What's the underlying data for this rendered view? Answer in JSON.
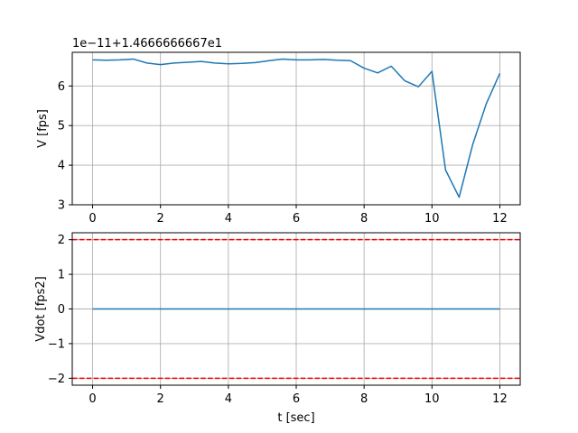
{
  "chart_data": [
    {
      "type": "line",
      "ylabel": "V [fps]",
      "xlabel": "",
      "offset_text": "1e−11+1.4666666667e1",
      "xlim": [
        -0.6,
        12.6
      ],
      "ylim": [
        3.0,
        6.85
      ],
      "xticks": [
        0,
        2,
        4,
        6,
        8,
        10,
        12
      ],
      "yticks": [
        3,
        4,
        5,
        6
      ],
      "grid": true,
      "series": [
        {
          "color": "#1f77b4",
          "x": [
            0,
            0.4,
            0.8,
            1.2,
            1.6,
            2.0,
            2.4,
            2.8,
            3.2,
            3.6,
            4.0,
            4.4,
            4.8,
            5.2,
            5.6,
            6.0,
            6.4,
            6.8,
            7.2,
            7.6,
            8.0,
            8.4,
            8.8,
            9.2,
            9.6,
            10.0,
            10.4,
            10.8,
            11.2,
            11.6,
            12.0
          ],
          "y": [
            6.66,
            6.65,
            6.66,
            6.68,
            6.58,
            6.54,
            6.58,
            6.6,
            6.62,
            6.58,
            6.56,
            6.57,
            6.59,
            6.64,
            6.68,
            6.66,
            6.66,
            6.67,
            6.65,
            6.64,
            6.45,
            6.33,
            6.5,
            6.13,
            5.98,
            6.37,
            3.88,
            3.19,
            4.52,
            5.55,
            6.32
          ]
        }
      ]
    },
    {
      "type": "line",
      "ylabel": "Vdot [fps2]",
      "xlabel": "t [sec]",
      "xlim": [
        -0.6,
        12.6
      ],
      "ylim": [
        -2.2,
        2.2
      ],
      "xticks": [
        0,
        2,
        4,
        6,
        8,
        10,
        12
      ],
      "yticks": [
        -2,
        -1,
        0,
        1,
        2
      ],
      "grid": true,
      "series": [
        {
          "color": "#1f77b4",
          "style": "solid",
          "x": [
            0,
            12
          ],
          "y": [
            0,
            0
          ]
        },
        {
          "color": "#ff0000",
          "style": "dashed",
          "x": [
            -0.6,
            12.6
          ],
          "y": [
            2,
            2
          ]
        },
        {
          "color": "#ff0000",
          "style": "dashed",
          "x": [
            -0.6,
            12.6
          ],
          "y": [
            -2,
            -2
          ]
        }
      ]
    }
  ]
}
